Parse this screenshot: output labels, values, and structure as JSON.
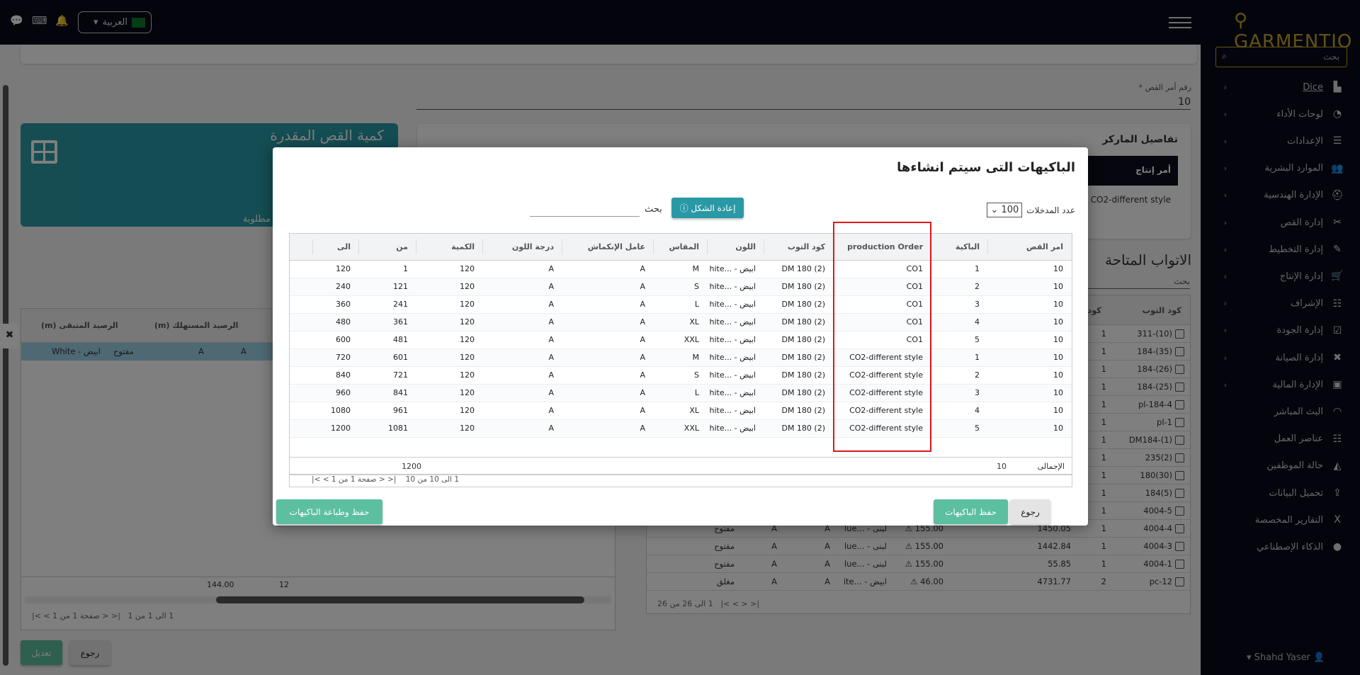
{
  "topbar": {
    "language": "العربية",
    "icons": [
      "chat-icon",
      "keyboard-icon",
      "bell-icon"
    ]
  },
  "sidebar": {
    "brand": "GARMENTIO",
    "search_placeholder": "بحث",
    "items": [
      {
        "label": "Dice",
        "icon": "chart-icon",
        "chevron": true
      },
      {
        "label": "لوحات الأداء",
        "icon": "dashboard-icon",
        "chevron": true
      },
      {
        "label": "الإعدادات",
        "icon": "sliders-icon",
        "chevron": true
      },
      {
        "label": "الموارد البشرية",
        "icon": "users-icon",
        "chevron": true
      },
      {
        "label": "الإدارة الهندسية",
        "icon": "hardhat-icon",
        "chevron": true
      },
      {
        "label": "إدارة القص",
        "icon": "scissors-icon",
        "chevron": true
      },
      {
        "label": "إدارة التخطيط",
        "icon": "pencil-ruler-icon",
        "chevron": true
      },
      {
        "label": "إدارة الإنتاج",
        "icon": "cart-icon",
        "chevron": true
      },
      {
        "label": "الإشراف",
        "icon": "checklist-icon",
        "chevron": true
      },
      {
        "label": "إدارة الجودة",
        "icon": "clipboard-check-icon",
        "chevron": true
      },
      {
        "label": "إدارة الصيانة",
        "icon": "tools-icon",
        "chevron": true
      },
      {
        "label": "الإدارة المالية",
        "icon": "money-icon",
        "chevron": true
      },
      {
        "label": "البث المباشر",
        "icon": "rss-icon",
        "chevron": false
      },
      {
        "label": "عناصر العمل",
        "icon": "tasks-icon",
        "chevron": false
      },
      {
        "label": "حالة الموظفين",
        "icon": "area-chart-icon",
        "chevron": false
      },
      {
        "label": "تحميل البيانات",
        "icon": "upload-icon",
        "chevron": false
      },
      {
        "label": "التقارير المخصصة",
        "icon": "excel-icon",
        "chevron": false
      },
      {
        "label": "الذكاء الإصطناعي",
        "icon": "bulb-icon",
        "chevron": false
      }
    ],
    "user": "Shahd Yaser"
  },
  "background": {
    "cut_order_label": "رقم أمر القص *",
    "cut_order_value": "10",
    "marker_title": "تفاصيل الماركر",
    "marker_header": "أمر إنتاج",
    "marker_value": "CO1, CO2-different style",
    "teal_title": "كمية القص المقدرة",
    "teal_sub": "مطلوبة",
    "available_title": "الاتواب المتاحة",
    "available_search": "بحث",
    "avail_headers": [
      "كود التوب",
      "كود نو"
    ],
    "avail_rows": [
      [
        "(10)-311",
        "1",
        "",
        "",
        "",
        "",
        "",
        ""
      ],
      [
        "(35)-184",
        "1",
        "",
        "",
        "",
        "",
        "",
        ""
      ],
      [
        "(26)-184",
        "1",
        "",
        "",
        "",
        "",
        "",
        ""
      ],
      [
        "(25)-184",
        "1",
        "",
        "",
        "",
        "",
        "",
        ""
      ],
      [
        "pl-184-4",
        "1",
        "",
        "",
        "",
        "",
        "",
        ""
      ],
      [
        "pl-1",
        "1",
        "",
        "",
        "",
        "",
        "",
        ""
      ],
      [
        "DM184-(1)",
        "1",
        "",
        "",
        "",
        "",
        "",
        ""
      ],
      [
        "(2)235",
        "1",
        "",
        "",
        "",
        "",
        "",
        ""
      ],
      [
        "(30)180",
        "1",
        "",
        "",
        "",
        "",
        "",
        ""
      ],
      [
        "(5)184",
        "1",
        "",
        "",
        "",
        "",
        "",
        ""
      ],
      [
        "4004-5",
        "1",
        "",
        "",
        "",
        "",
        "",
        ""
      ],
      [
        "4004-4",
        "1",
        "1450.05",
        "155.00",
        "لبنى - ...lue",
        "A",
        "A",
        "مفتوح"
      ],
      [
        "4004-3",
        "1",
        "1442.84",
        "155.00",
        "لبنى - ...lue",
        "A",
        "A",
        "مفتوح"
      ],
      [
        "4004-1",
        "1",
        "55.85",
        "155.00",
        "لبنى - ...lue",
        "A",
        "A",
        "مفتوح"
      ],
      [
        "pc-12",
        "2",
        "4731.77",
        "46.00",
        "ابيض - ...ite",
        "A",
        "A",
        "مغلق"
      ]
    ],
    "avail_pagination": "1 الى 26 من 26",
    "left_headers": [
      "الرصيد المستهلك (m)",
      "الرصيد المتبقى (m)"
    ],
    "left_row": [
      "A",
      "A",
      "مفتوح",
      "ابيض - White"
    ],
    "left_totals": [
      "12",
      "144.00"
    ],
    "left_pagination": "1 الى 1 من 1",
    "left_page": "صفحة 1 من 1",
    "edit_button": "تعديل",
    "back_button": "رجوع"
  },
  "modal": {
    "title": "الباكيهات التى سيتم انشاءها",
    "entries_label": "عدد المدخلات",
    "entries_value": "100",
    "reset_button": "إعادة الشكل",
    "search_label": "بحث",
    "headers": [
      "امر القص",
      "الباكية",
      "production Order",
      "كود التوب",
      "اللون",
      "المقاس",
      "عامل الإنكماش",
      "درجة اللون",
      "الكمية",
      "من",
      "الى",
      ""
    ],
    "rows": [
      [
        "10",
        "1",
        "CO1",
        "DM 180 (2)",
        "ابيض - ...hite",
        "M",
        "A",
        "A",
        "120",
        "1",
        "120"
      ],
      [
        "10",
        "2",
        "CO1",
        "DM 180 (2)",
        "ابيض - ...hite",
        "S",
        "A",
        "A",
        "120",
        "121",
        "240"
      ],
      [
        "10",
        "3",
        "CO1",
        "DM 180 (2)",
        "ابيض - ...hite",
        "L",
        "A",
        "A",
        "120",
        "241",
        "360"
      ],
      [
        "10",
        "4",
        "CO1",
        "DM 180 (2)",
        "ابيض - ...hite",
        "XL",
        "A",
        "A",
        "120",
        "361",
        "480"
      ],
      [
        "10",
        "5",
        "CO1",
        "DM 180 (2)",
        "ابيض - ...hite",
        "XXL",
        "A",
        "A",
        "120",
        "481",
        "600"
      ],
      [
        "10",
        "1",
        "CO2-different style",
        "DM 180 (2)",
        "ابيض - ...hite",
        "M",
        "A",
        "A",
        "120",
        "601",
        "720"
      ],
      [
        "10",
        "2",
        "CO2-different style",
        "DM 180 (2)",
        "ابيض - ...hite",
        "S",
        "A",
        "A",
        "120",
        "721",
        "840"
      ],
      [
        "10",
        "3",
        "CO2-different style",
        "DM 180 (2)",
        "ابيض - ...hite",
        "L",
        "A",
        "A",
        "120",
        "841",
        "960"
      ],
      [
        "10",
        "4",
        "CO2-different style",
        "DM 180 (2)",
        "ابيض - ...hite",
        "XL",
        "A",
        "A",
        "120",
        "961",
        "1080"
      ],
      [
        "10",
        "5",
        "CO2-different style",
        "DM 180 (2)",
        "ابيض - ...hite",
        "XXL",
        "A",
        "A",
        "120",
        "1081",
        "1200"
      ]
    ],
    "total_label": "الإجمالى",
    "total_count": "10",
    "total_quantity": "1200",
    "pagination_range": "1 الى 10 من 10",
    "pagination_page": "صفحة 1 من 1",
    "back_button": "رجوع",
    "save_button": "حفظ الباكيهات",
    "save_print_button": "حفظ وطباعة الباكيهات"
  },
  "colors": {
    "accent_teal": "#2899a5",
    "save_green": "#5cbf9f",
    "highlight_red": "#e0161e",
    "brand_gold": "#c9a227",
    "nav_dark": "#080b18"
  }
}
